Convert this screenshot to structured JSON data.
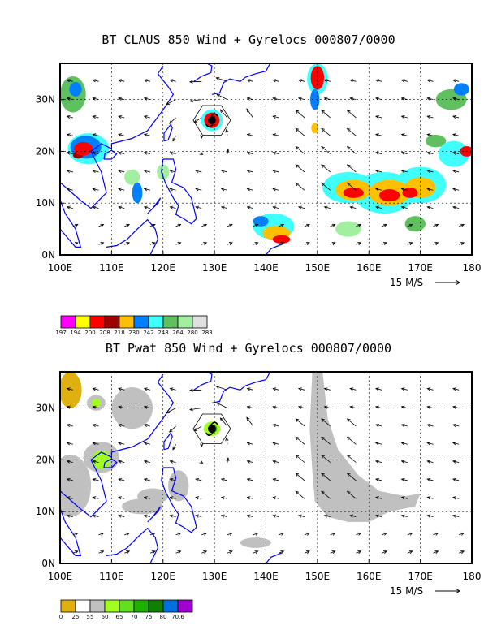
{
  "panels": [
    {
      "title": "BT CLAUS 850 Wind + Gyrelocs 000807/0000",
      "x_ticks": [
        "100E",
        "110E",
        "120E",
        "130E",
        "140E",
        "150E",
        "160E",
        "170E",
        "180"
      ],
      "y_ticks": [
        "0N",
        "10N",
        "20N",
        "30N"
      ],
      "scale_label": "15 M/S",
      "legend_colors": [
        "#ff00ff",
        "#ffff00",
        "#ff0000",
        "#a00000",
        "#ffc000",
        "#0080ff",
        "#40ffff",
        "#60c060",
        "#a0f0a0",
        "#e0e0e0"
      ],
      "legend_labels": [
        "197",
        "194",
        "200",
        "208",
        "218",
        "230",
        "242",
        "248",
        "264",
        "280",
        "283"
      ]
    },
    {
      "title": "BT Pwat 850 Wind + Gyrelocs 000807/0000",
      "x_ticks": [
        "100E",
        "110E",
        "120E",
        "130E",
        "140E",
        "150E",
        "160E",
        "170E",
        "180"
      ],
      "y_ticks": [
        "0N",
        "10N",
        "20N",
        "30N"
      ],
      "scale_label": "15 M/S",
      "legend_colors": [
        "#e0b010",
        "#ffffff",
        "#c0c0c0",
        "#a0ff20",
        "#60e020",
        "#20b000",
        "#108000",
        "#0070e0",
        "#a000d0"
      ],
      "legend_labels": [
        "0",
        "25",
        "55",
        "60",
        "65",
        "70",
        "75",
        "80",
        "70.6"
      ]
    }
  ]
}
